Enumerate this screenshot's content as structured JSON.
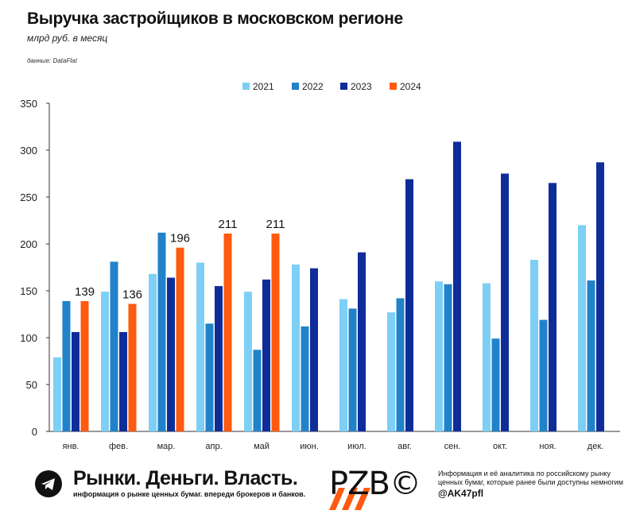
{
  "header": {
    "title": "Выручка застройщиков в московском регионе",
    "subtitle": "млрд руб. в месяц",
    "source": "данные: DataFlat"
  },
  "chart_data": {
    "type": "bar",
    "categories": [
      "янв.",
      "фев.",
      "мар.",
      "апр.",
      "май",
      "июн.",
      "июл.",
      "авг.",
      "сен.",
      "окт.",
      "ноя.",
      "дек."
    ],
    "series": [
      {
        "name": "2021",
        "color": "#7dcff5",
        "values": [
          79,
          149,
          168,
          180,
          149,
          178,
          141,
          127,
          160,
          158,
          183,
          220
        ]
      },
      {
        "name": "2022",
        "color": "#2182c9",
        "values": [
          139,
          181,
          212,
          115,
          87,
          112,
          131,
          142,
          157,
          99,
          119,
          161
        ]
      },
      {
        "name": "2023",
        "color": "#0f2d99",
        "values": [
          106,
          106,
          164,
          155,
          162,
          174,
          191,
          269,
          309,
          275,
          265,
          287
        ]
      },
      {
        "name": "2024",
        "color": "#ff5a0f",
        "values": [
          139,
          136,
          196,
          211,
          211,
          null,
          null,
          null,
          null,
          null,
          null,
          null
        ]
      }
    ],
    "data_labels": [
      {
        "series": "2024",
        "category": "янв.",
        "text": "139"
      },
      {
        "series": "2024",
        "category": "фев.",
        "text": "136"
      },
      {
        "series": "2024",
        "category": "мар.",
        "text": "196"
      },
      {
        "series": "2024",
        "category": "апр.",
        "text": "211"
      },
      {
        "series": "2024",
        "category": "май",
        "text": "211"
      }
    ],
    "ylim": [
      0,
      350
    ],
    "yticks": [
      0,
      50,
      100,
      150,
      200,
      250,
      300,
      350
    ],
    "grid": false,
    "legend": "top-center"
  },
  "footer": {
    "brand": "Рынки. Деньги. Власть.",
    "brand_sub": "информация о рынке ценных бумаг. впереди брокеров и банков.",
    "logo_text": "PZB©",
    "info": "Информация и её аналитика по российскому рынку ценных бумаг, которые ранее были доступны немногим",
    "handle": "@AK47pfl"
  }
}
